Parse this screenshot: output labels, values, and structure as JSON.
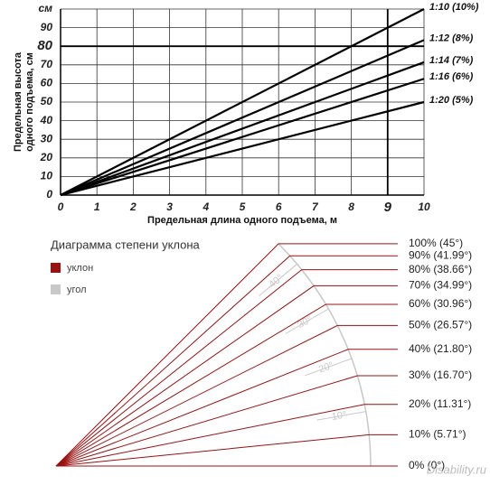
{
  "chart_data": [
    {
      "type": "line",
      "ylabel": [
        "Предельная высота",
        "одного подъема, см"
      ],
      "xlabel": "Предельная длина одного подъема, м",
      "x": [
        0,
        10
      ],
      "series": [
        {
          "name": "1:10 (10%)",
          "color": "#000000",
          "values": [
            0,
            100
          ]
        },
        {
          "name": "1:12 (8%)",
          "color": "#000000",
          "values": [
            0,
            83.3
          ]
        },
        {
          "name": "1:14 (7%)",
          "color": "#000000",
          "values": [
            0,
            71.4
          ]
        },
        {
          "name": "1:16 (6%)",
          "color": "#000000",
          "values": [
            0,
            62.5
          ]
        },
        {
          "name": "1:20 (5%)",
          "color": "#000000",
          "values": [
            0,
            50
          ]
        }
      ],
      "xlim": [
        0,
        10
      ],
      "ylim": [
        0,
        100
      ],
      "xticks": [
        0,
        1,
        2,
        3,
        4,
        5,
        6,
        7,
        8,
        9,
        10
      ],
      "yticks": [
        0,
        10,
        20,
        30,
        40,
        50,
        60,
        70,
        80,
        90,
        {
          "value": 100,
          "label": "см"
        }
      ],
      "grid": true,
      "reference_lines": {
        "x": 9,
        "y": 80
      }
    },
    {
      "type": "slope-diagram",
      "title": "Диаграмма степени уклона",
      "legend": [
        {
          "name": "уклон",
          "color": "#9b1010"
        },
        {
          "name": "угол",
          "color": "#c8c8c8"
        }
      ],
      "values": [
        100,
        90,
        80,
        70,
        60,
        50,
        40,
        30,
        20,
        10,
        0
      ],
      "value_labels": [
        "100% (45°)",
        "90% (41.99°)",
        "80% (38.66°)",
        "70% (34.99°)",
        "60% (30.96°)",
        "50% (26.57°)",
        "40% (21.80°)",
        "30% (16.70°)",
        "20% (11.31°)",
        "10% (5.71°)",
        "0% (0°)"
      ],
      "angle_ticks": [
        {
          "value": 10,
          "label": "10°"
        },
        {
          "value": 20,
          "label": "20°"
        },
        {
          "value": 30,
          "label": "30°"
        },
        {
          "value": 40,
          "label": "40°"
        }
      ],
      "watermark": "Disability.ru"
    }
  ]
}
